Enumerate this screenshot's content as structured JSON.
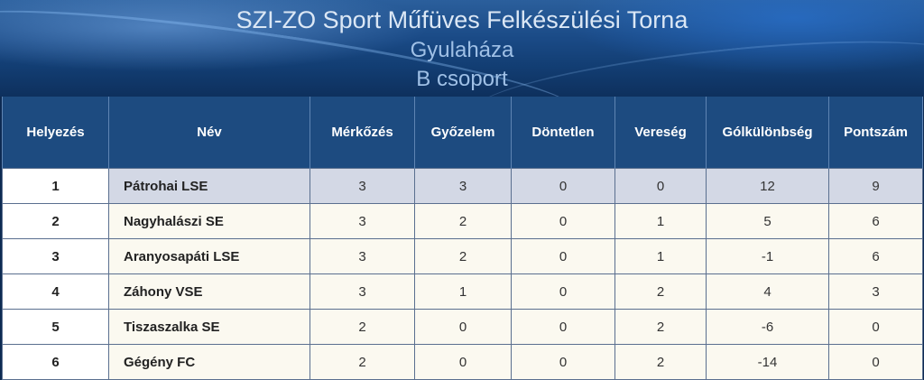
{
  "header": {
    "title": "SZI-ZO Sport Műfüves Felkészülési Torna",
    "subtitle": "Gyulaháza",
    "group": "B csoport"
  },
  "columns": [
    "Helyezés",
    "Név",
    "Mérkőzés",
    "Győzelem",
    "Döntetlen",
    "Vereség",
    "Gólkülönbség",
    "Pontszám"
  ],
  "rows": [
    {
      "pos": "1",
      "name": "Pátrohai LSE",
      "played": "3",
      "won": "3",
      "drawn": "0",
      "lost": "0",
      "gd": "12",
      "pts": "9"
    },
    {
      "pos": "2",
      "name": "Nagyhalászi SE",
      "played": "3",
      "won": "2",
      "drawn": "0",
      "lost": "1",
      "gd": "5",
      "pts": "6"
    },
    {
      "pos": "3",
      "name": "Aranyosapáti LSE",
      "played": "3",
      "won": "2",
      "drawn": "0",
      "lost": "1",
      "gd": "-1",
      "pts": "6"
    },
    {
      "pos": "4",
      "name": "Záhony VSE",
      "played": "3",
      "won": "1",
      "drawn": "0",
      "lost": "2",
      "gd": "4",
      "pts": "3"
    },
    {
      "pos": "5",
      "name": "Tiszaszalka SE",
      "played": "2",
      "won": "0",
      "drawn": "0",
      "lost": "2",
      "gd": "-6",
      "pts": "0"
    },
    {
      "pos": "6",
      "name": "Gégény FC",
      "played": "2",
      "won": "0",
      "drawn": "0",
      "lost": "2",
      "gd": "-14",
      "pts": "0"
    }
  ],
  "colors": {
    "header_bg": "#1d4b80",
    "highlight_row": "#d3d8e5",
    "row_bg": "#fbf9f0"
  }
}
